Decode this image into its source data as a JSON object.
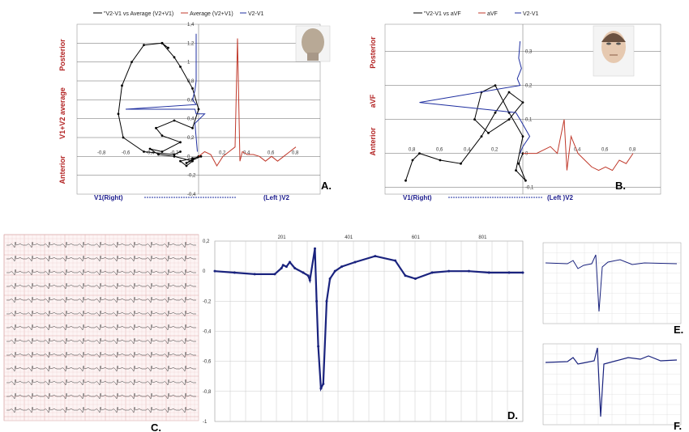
{
  "panels": {
    "A": {
      "letter": "A.",
      "legend": [
        "\"V2-V1 vs Average (V2+V1)",
        "Average (V2+V1)",
        "V2-V1"
      ],
      "y_labels": {
        "top": "Posterior",
        "mid": "V1+V2 average",
        "bottom": "Anterior"
      },
      "x_labels": {
        "left": "V1(Right)",
        "right": "(Left )V2"
      },
      "x_ticks": [
        "-0,8",
        "-0,6",
        "-0,4",
        "-0,2",
        "0,2",
        "0,4",
        "0,6",
        "0,8"
      ],
      "y_ticks": [
        "1,4",
        "1,2",
        "1",
        "0,8",
        "0,6",
        "0,4",
        "0,2",
        "0",
        "-0,2",
        "-0,4"
      ]
    },
    "B": {
      "letter": "B.",
      "legend": [
        "\"V2-V1 vs aVF",
        "aVF",
        "V2-V1"
      ],
      "y_labels": {
        "top": "Posterior",
        "mid": "aVF",
        "bottom": "Anterior"
      },
      "x_labels": {
        "left": "V1(Right)",
        "right": "(Left )V2"
      },
      "x_ticks": [
        "0,8",
        "0,6",
        "0,4",
        "0,2",
        "0,4",
        "0,6",
        "0,8"
      ],
      "y_ticks": [
        "0,3",
        "0,2",
        "0,1",
        "0",
        "-0,1"
      ]
    },
    "C": {
      "letter": "C."
    },
    "D": {
      "letter": "D.",
      "x_ticks": [
        "201",
        "401",
        "601",
        "801"
      ],
      "y_ticks": [
        "0,2",
        "0",
        "-0,2",
        "-0,4",
        "-0,6",
        "-0,8",
        "-1"
      ]
    },
    "E": {
      "letter": "E."
    },
    "F": {
      "letter": "F."
    }
  },
  "chart_data": [
    {
      "panel": "A",
      "type": "line",
      "series": [
        {
          "name": "\"V2-V1 vs Average (V2+V1)",
          "color": "#000000",
          "x": [
            -0.15,
            -0.2,
            -0.45,
            -0.62,
            -0.66,
            -0.63,
            -0.55,
            -0.45,
            -0.3,
            -0.25,
            -0.3,
            -0.2,
            -0.15,
            -0.05,
            0.0,
            -0.05,
            -0.2,
            -0.35,
            -0.3,
            -0.15,
            -0.3,
            -0.4,
            -0.33,
            -0.2,
            -0.05,
            -0.1,
            -0.15,
            -0.05,
            0.02,
            -0.1,
            -0.05,
            0.0
          ],
          "y": [
            0.05,
            0.02,
            0.05,
            0.2,
            0.45,
            0.75,
            1.0,
            1.18,
            1.2,
            1.15,
            1.2,
            1.05,
            0.95,
            0.72,
            0.5,
            0.3,
            0.38,
            0.3,
            0.22,
            0.15,
            0.05,
            0.08,
            0.02,
            0.0,
            -0.05,
            -0.1,
            -0.05,
            -0.02,
            0.0,
            -0.07,
            -0.03,
            0.0
          ]
        },
        {
          "name": "Average (V2+V1)",
          "color": "#c0392b",
          "x": [
            0.0,
            0.05,
            0.1,
            0.15,
            0.2,
            0.25,
            0.3,
            0.32,
            0.34,
            0.36,
            0.4,
            0.45,
            0.5,
            0.55,
            0.6,
            0.65,
            0.7,
            0.75,
            0.8
          ],
          "y": [
            0.0,
            0.05,
            0.02,
            -0.1,
            0.0,
            0.05,
            0.1,
            1.25,
            -0.05,
            0.05,
            0.02,
            0.02,
            0.0,
            -0.05,
            0.0,
            -0.05,
            0.0,
            0.05,
            0.1
          ]
        },
        {
          "name": "V2-V1",
          "color": "#1f2fa0",
          "x": [
            -0.02,
            -0.02,
            -0.03,
            -0.05,
            -0.02,
            -0.6,
            -0.03,
            -0.02,
            0.05,
            -0.03,
            -0.02,
            -0.01
          ],
          "y": [
            1.3,
            0.8,
            0.7,
            0.6,
            0.55,
            0.5,
            0.5,
            0.45,
            0.45,
            0.35,
            0.2,
            0.05
          ]
        }
      ]
    },
    {
      "panel": "B",
      "type": "line",
      "series": [
        {
          "name": "\"V2-V1 vs aVF",
          "color": "#000000",
          "x": [
            -0.85,
            -0.8,
            -0.75,
            -0.6,
            -0.45,
            -0.3,
            -0.2,
            -0.1,
            0.0,
            -0.1,
            -0.25,
            -0.35,
            -0.3,
            -0.2,
            -0.1,
            0.0,
            -0.05,
            0.02,
            -0.03,
            0.0
          ],
          "y": [
            -0.08,
            -0.02,
            0.0,
            -0.02,
            -0.03,
            0.05,
            0.12,
            0.18,
            0.15,
            0.1,
            0.06,
            0.1,
            0.18,
            0.2,
            0.12,
            0.05,
            -0.05,
            -0.08,
            -0.03,
            0.0
          ]
        },
        {
          "name": "aVF",
          "color": "#c0392b",
          "x": [
            0.0,
            0.1,
            0.2,
            0.25,
            0.3,
            0.32,
            0.35,
            0.4,
            0.45,
            0.5,
            0.55,
            0.6,
            0.65,
            0.7,
            0.75,
            0.8
          ],
          "y": [
            0.0,
            0.0,
            0.02,
            0.0,
            0.1,
            -0.05,
            0.05,
            0.0,
            -0.02,
            -0.04,
            -0.05,
            -0.04,
            -0.05,
            -0.02,
            -0.03,
            0.0
          ]
        },
        {
          "name": "V2-V1",
          "color": "#1f2fa0",
          "x": [
            -0.02,
            -0.03,
            -0.01,
            -0.04,
            -0.02,
            -0.75,
            -0.05,
            -0.02,
            0.05,
            0.0,
            -0.02
          ],
          "y": [
            0.33,
            0.28,
            0.25,
            0.22,
            0.2,
            0.15,
            0.12,
            0.1,
            0.05,
            0.02,
            0.0
          ]
        }
      ]
    },
    {
      "panel": "D",
      "type": "line",
      "xlim": [
        1,
        921
      ],
      "ylim": [
        -1,
        0.2
      ],
      "series": [
        {
          "color": "#1a237e",
          "x": [
            1,
            60,
            120,
            180,
            200,
            205,
            215,
            225,
            240,
            265,
            280,
            285,
            300,
            305,
            310,
            318,
            325,
            335,
            345,
            360,
            380,
            420,
            480,
            540,
            570,
            600,
            650,
            700,
            760,
            820,
            880,
            921
          ],
          "y": [
            0.0,
            -0.01,
            -0.02,
            -0.02,
            0.02,
            0.04,
            0.03,
            0.06,
            0.02,
            -0.01,
            -0.03,
            -0.06,
            0.15,
            -0.2,
            -0.5,
            -0.78,
            -0.75,
            -0.2,
            -0.05,
            0.0,
            0.03,
            0.06,
            0.1,
            0.07,
            -0.03,
            -0.05,
            -0.01,
            0.0,
            0.0,
            -0.01,
            -0.01,
            -0.01
          ]
        }
      ]
    }
  ]
}
